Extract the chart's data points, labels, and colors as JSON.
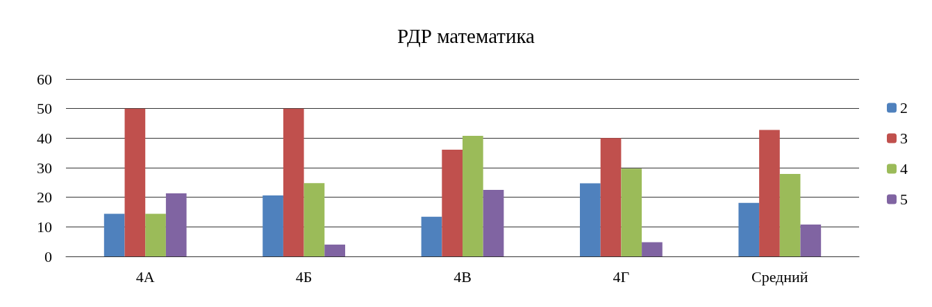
{
  "chart_data": {
    "type": "bar",
    "title": "РДР математика",
    "categories": [
      "4А",
      "4Б",
      "4В",
      "4Г",
      "Средний"
    ],
    "series": [
      {
        "name": "2",
        "color": "#4f81bd",
        "values": [
          14.4,
          20.6,
          13.4,
          24.7,
          18.1
        ]
      },
      {
        "name": "3",
        "color": "#c0504d",
        "values": [
          50,
          50,
          36.1,
          40,
          42.8
        ]
      },
      {
        "name": "4",
        "color": "#9bbb59",
        "values": [
          14.4,
          24.8,
          40.8,
          29.7,
          27.9
        ]
      },
      {
        "name": "5",
        "color": "#8064a2",
        "values": [
          21.3,
          4,
          22.5,
          4.8,
          10.8
        ]
      }
    ],
    "ylim": [
      0,
      60
    ],
    "yticks": [
      0,
      10,
      20,
      30,
      40,
      50,
      60
    ],
    "grid": "y",
    "legend": "right"
  }
}
